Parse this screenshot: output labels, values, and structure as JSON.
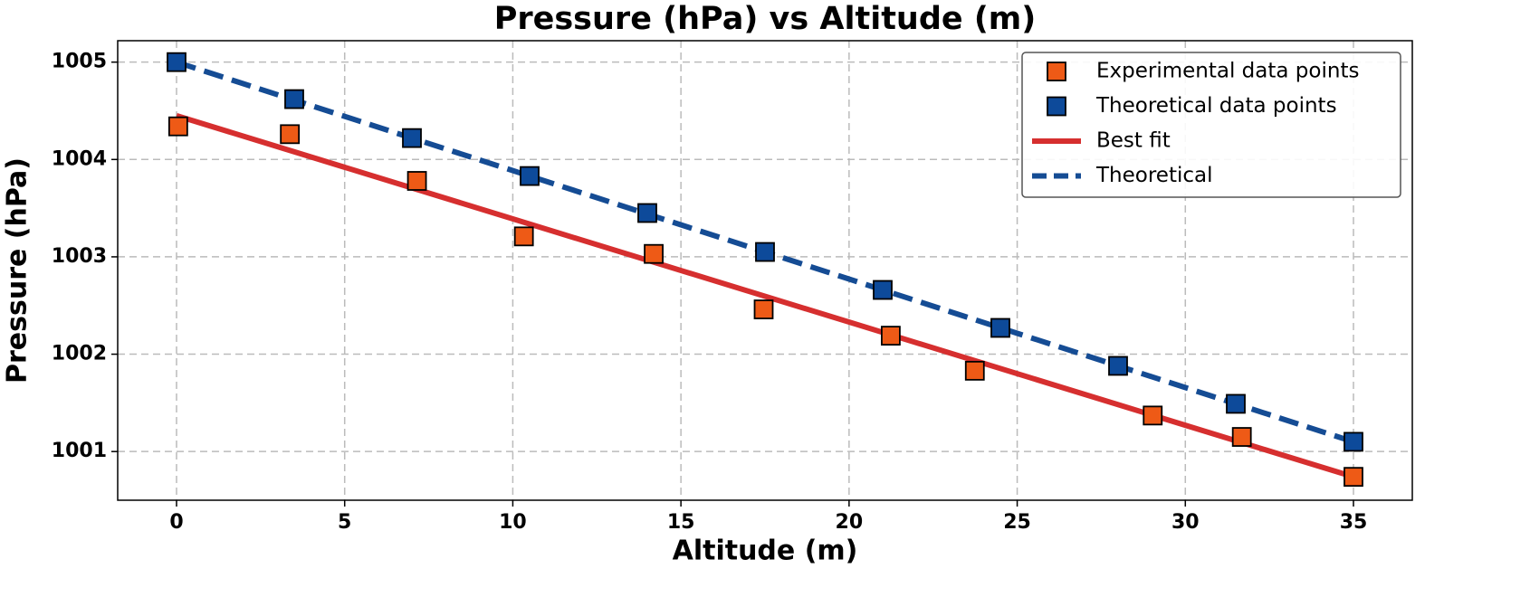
{
  "chart_data": {
    "type": "scatter",
    "title": "Pressure (hPa) vs Altitude (m)",
    "x_label": "Altitude (m)",
    "y_label": "Pressure (hPa)",
    "xlim": [
      -1.75,
      36.75
    ],
    "ylim": [
      1000.5,
      1005.22
    ],
    "xticks": [
      0,
      5,
      10,
      15,
      20,
      25,
      30,
      35
    ],
    "yticks": [
      1001,
      1002,
      1003,
      1004,
      1005
    ],
    "grid": true,
    "legend": "upper right",
    "series": [
      {
        "name": "Experimental data points",
        "color": "#ee5a16",
        "marker": "square",
        "x": [
          0.05,
          3.37,
          7.15,
          10.33,
          14.19,
          17.46,
          21.24,
          23.74,
          29.03,
          31.68,
          35
        ],
        "values": [
          1004.34,
          1004.26,
          1003.78,
          1003.21,
          1003.03,
          1002.46,
          1002.19,
          1001.83,
          1001.37,
          1001.15,
          1000.74
        ]
      },
      {
        "name": "Theoretical data points",
        "color": "#0d4a9a",
        "marker": "square",
        "x": [
          0,
          3.5,
          7,
          10.5,
          14,
          17.5,
          21,
          24.5,
          28,
          31.5,
          35
        ],
        "values": [
          1005,
          1004.62,
          1004.22,
          1003.83,
          1003.45,
          1003.05,
          1002.66,
          1002.27,
          1001.88,
          1001.49,
          1001.1
        ]
      },
      {
        "name": "Best fit",
        "color": "#d62f2f",
        "line": "solid",
        "x": [
          0,
          35
        ],
        "values": [
          1004.45,
          1000.74
        ]
      },
      {
        "name": "Theoretical",
        "color": "#154c94",
        "line": "dashed",
        "x": [
          0,
          35
        ],
        "values": [
          1005,
          1001.1
        ]
      }
    ]
  }
}
